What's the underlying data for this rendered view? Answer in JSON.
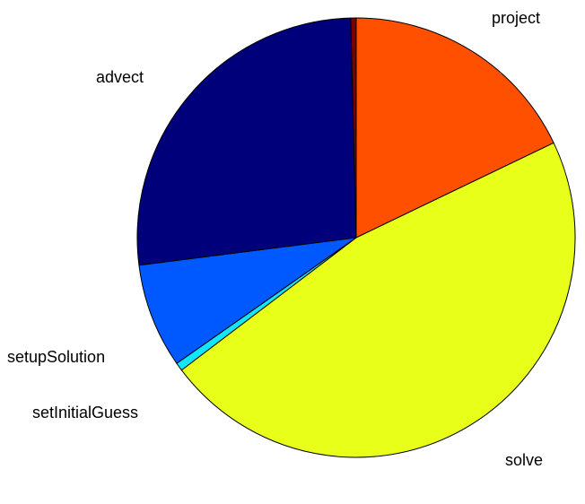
{
  "chart_data": {
    "type": "pie",
    "title": "",
    "slices": [
      {
        "label": "project",
        "value": 17.9,
        "color": "#ff5000"
      },
      {
        "label": "solve",
        "value": 46.8,
        "color": "#e8ff1a"
      },
      {
        "label": "setInitialGuess",
        "value": 0.6,
        "color": "#12e6ff"
      },
      {
        "label": "setupSolution",
        "value": 7.7,
        "color": "#0058ff"
      },
      {
        "label": "advect",
        "value": 26.6,
        "color": "#00007a"
      },
      {
        "label": "",
        "value": 0.4,
        "color": "#7a0000"
      }
    ]
  }
}
